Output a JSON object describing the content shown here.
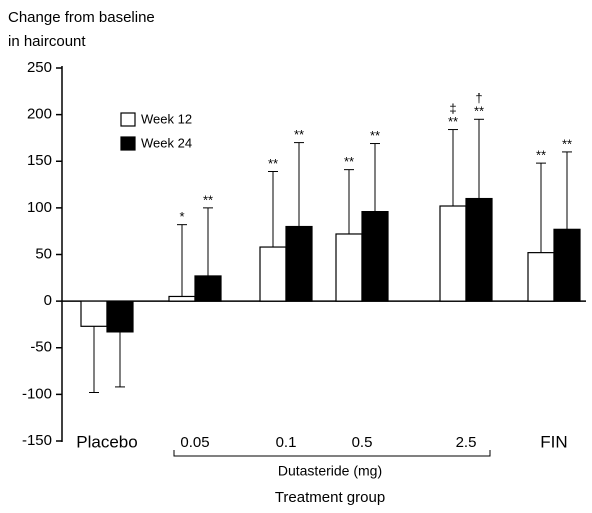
{
  "chart_data": {
    "type": "bar",
    "ylabel": [
      "Change from baseline",
      "in haircount"
    ],
    "xlabel": "Treatment group",
    "group_label": "Dutasteride (mg)",
    "categories": [
      "Placebo",
      "0.05",
      "0.1",
      "0.5",
      "2.5",
      "FIN"
    ],
    "ylim": [
      -150,
      250
    ],
    "yticks": [
      -150,
      -100,
      -50,
      0,
      50,
      100,
      150,
      200,
      250
    ],
    "series": [
      {
        "name": "Week 12",
        "color": "#ffffff",
        "values": [
          -27,
          5,
          58,
          72,
          102,
          52
        ],
        "errors": [
          71,
          77,
          81,
          69,
          82,
          96
        ],
        "markers": [
          null,
          "*",
          "**",
          "**",
          "**",
          "**"
        ],
        "extra_markers": [
          null,
          null,
          null,
          null,
          "‡",
          null
        ]
      },
      {
        "name": "Week 24",
        "color": "#000000",
        "values": [
          -33,
          27,
          80,
          96,
          110,
          77
        ],
        "errors": [
          59,
          73,
          90,
          73,
          85,
          83
        ],
        "markers": [
          null,
          "**",
          "**",
          "**",
          "**",
          "**"
        ],
        "extra_markers": [
          null,
          null,
          null,
          null,
          "†",
          null
        ]
      }
    ]
  }
}
